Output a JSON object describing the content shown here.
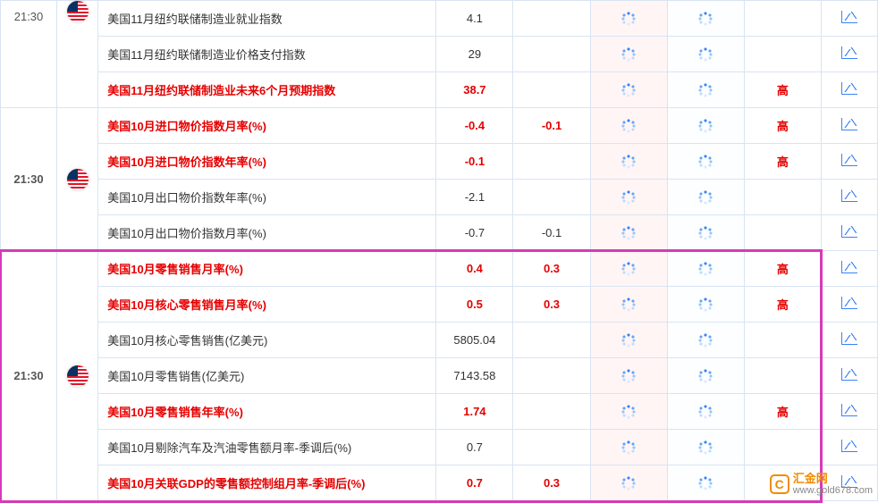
{
  "colors": {
    "border": "#d9e4f2",
    "red": "#e60000",
    "text": "#333333",
    "loading_bg1": "#fff5f5",
    "loading_bg2": "#fcfeff",
    "highlight_border": "#d63ab9",
    "icon_blue": "#3b82f6"
  },
  "col_widths": {
    "time": 60,
    "flag": 44,
    "name": 360,
    "v1": 82,
    "v2": 82,
    "load1": 82,
    "load2": 82,
    "imp": 82,
    "chart": 60
  },
  "watermark": {
    "logo_text": "C",
    "title": "汇金网",
    "sub": "www.gold678.com"
  },
  "groups": [
    {
      "time": "21:30",
      "time_top": true,
      "highlight": false,
      "rows": [
        {
          "name": "美国11月纽约联储制造业就业指数",
          "v1": "4.1",
          "v2": "",
          "imp": "",
          "red": false
        },
        {
          "name": "美国11月纽约联储制造业价格支付指数",
          "v1": "29",
          "v2": "",
          "imp": "",
          "red": false
        },
        {
          "name": "美国11月纽约联储制造业未来6个月预期指数",
          "v1": "38.7",
          "v2": "",
          "imp": "高",
          "red": true
        }
      ]
    },
    {
      "time": "21:30",
      "time_top": false,
      "highlight": false,
      "rows": [
        {
          "name": "美国10月进口物价指数月率(%)",
          "v1": "-0.4",
          "v2": "-0.1",
          "imp": "高",
          "red": true
        },
        {
          "name": "美国10月进口物价指数年率(%)",
          "v1": "-0.1",
          "v2": "",
          "imp": "高",
          "red": true
        },
        {
          "name": "美国10月出口物价指数年率(%)",
          "v1": "-2.1",
          "v2": "",
          "imp": "",
          "red": false
        },
        {
          "name": "美国10月出口物价指数月率(%)",
          "v1": "-0.7",
          "v2": "-0.1",
          "imp": "",
          "red": false
        }
      ]
    },
    {
      "time": "21:30",
      "time_top": false,
      "highlight": true,
      "rows": [
        {
          "name": "美国10月零售销售月率(%)",
          "v1": "0.4",
          "v2": "0.3",
          "imp": "高",
          "red": true
        },
        {
          "name": "美国10月核心零售销售月率(%)",
          "v1": "0.5",
          "v2": "0.3",
          "imp": "高",
          "red": true
        },
        {
          "name": "美国10月核心零售销售(亿美元)",
          "v1": "5805.04",
          "v2": "",
          "imp": "",
          "red": false
        },
        {
          "name": "美国10月零售销售(亿美元)",
          "v1": "7143.58",
          "v2": "",
          "imp": "",
          "red": false
        },
        {
          "name": "美国10月零售销售年率(%)",
          "v1": "1.74",
          "v2": "",
          "imp": "高",
          "red": true
        },
        {
          "name": "美国10月剔除汽车及汽油零售额月率-季调后(%)",
          "v1": "0.7",
          "v2": "",
          "imp": "",
          "red": false
        },
        {
          "name": "美国10月关联GDP的零售额控制组月率-季调后(%)",
          "v1": "0.7",
          "v2": "0.3",
          "imp": "高",
          "red": true
        }
      ]
    }
  ]
}
